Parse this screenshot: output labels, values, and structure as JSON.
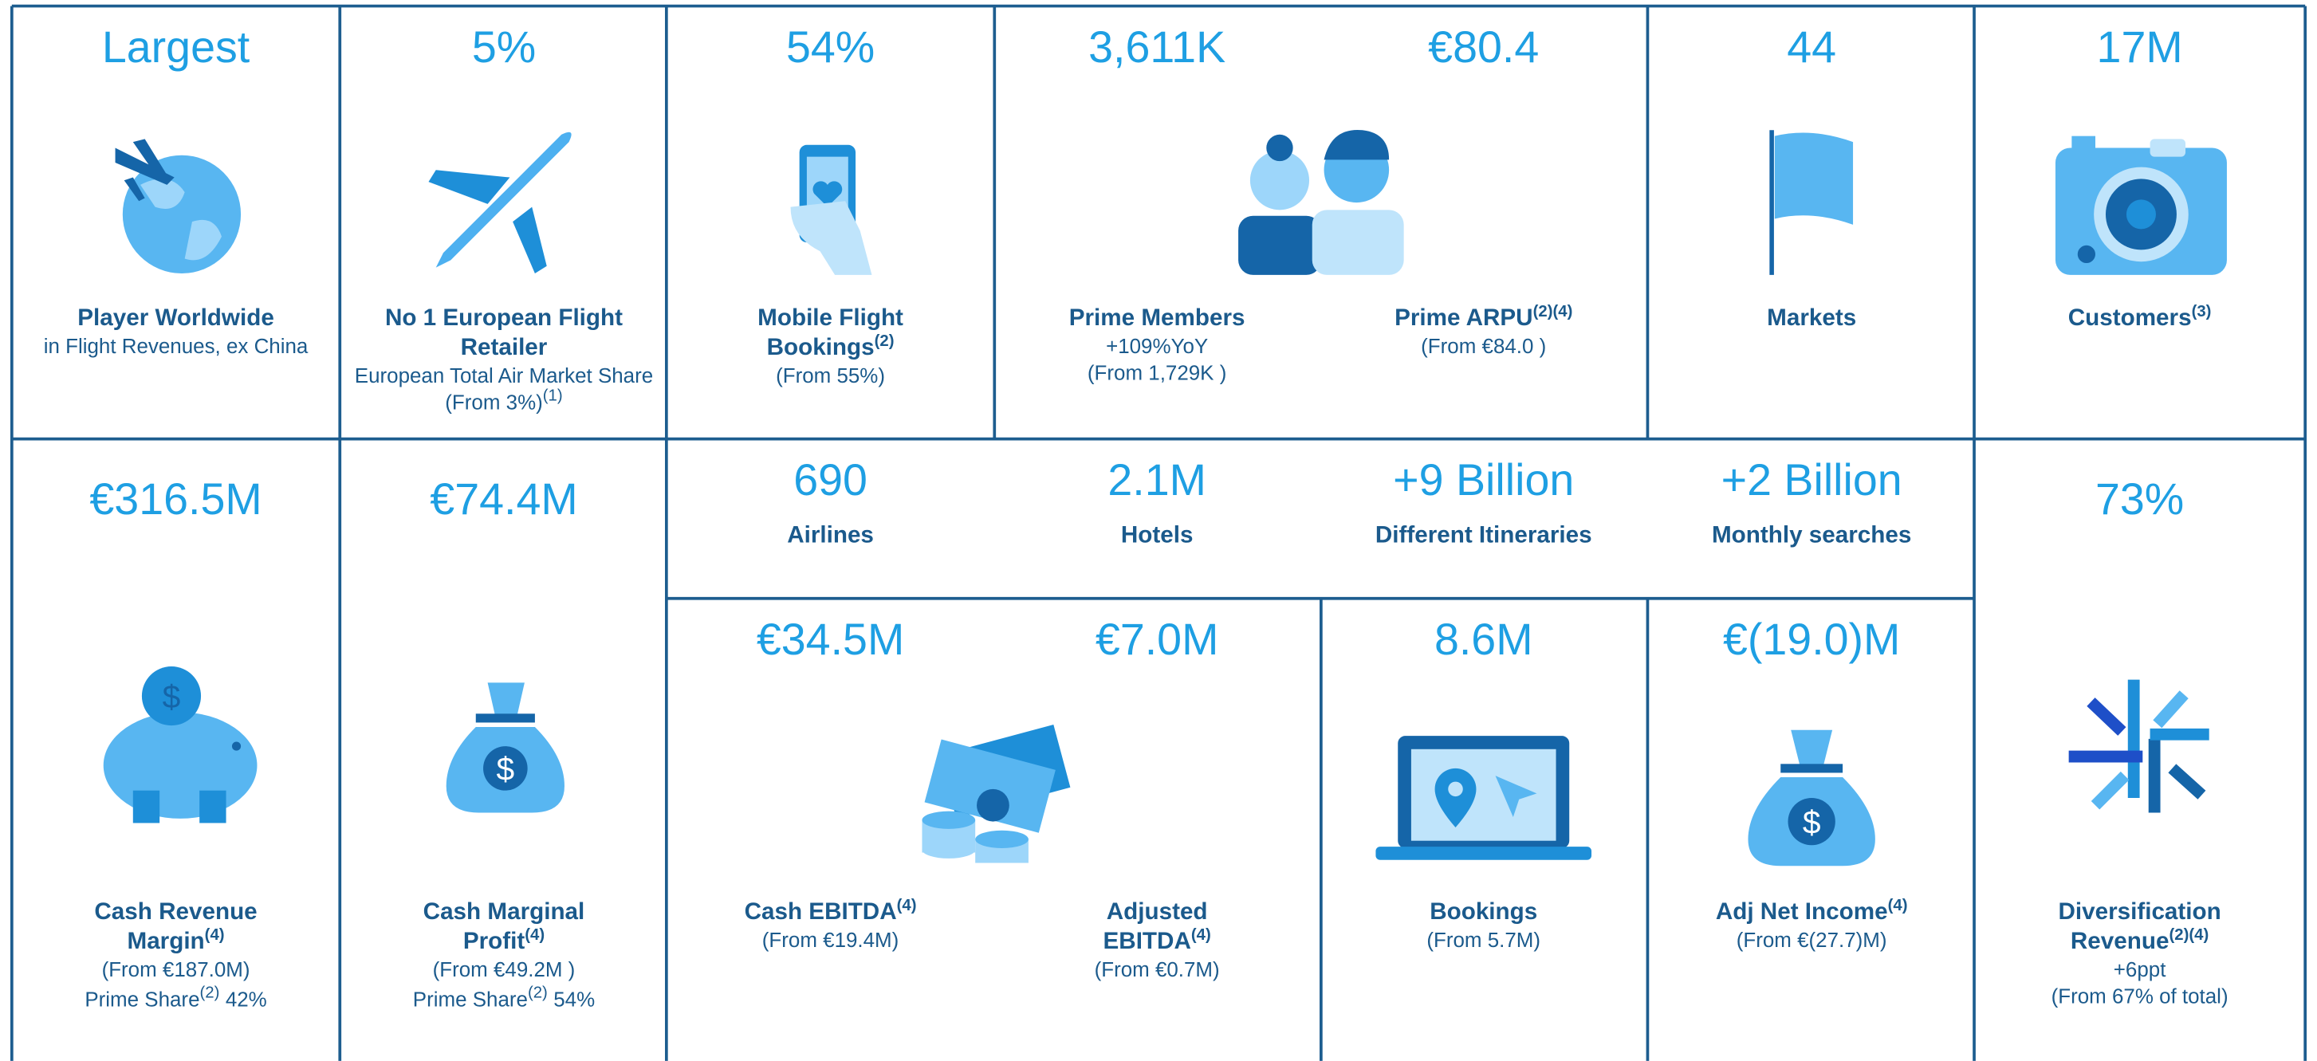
{
  "row1": [
    {
      "value": "Largest",
      "label": [
        "Player Worldwide"
      ],
      "notes": [
        "in Flight Revenues, ex China"
      ]
    },
    {
      "value": "5%",
      "label": [
        "No 1 European Flight",
        "Retailer"
      ],
      "notes": [
        "European Total Air Market Share",
        "(From 3%)"
      ],
      "notes_sup": "(1)"
    },
    {
      "value": "54%",
      "label": [
        "Mobile Flight",
        "Bookings"
      ],
      "label_sup": "(2)",
      "notes": [
        "(From 55%)"
      ]
    },
    {
      "value": "3,611K",
      "label": [
        "Prime Members"
      ],
      "notes": [
        "+109%YoY",
        "(From 1,729K )"
      ]
    },
    {
      "value": "€80.4",
      "label": [
        "Prime ARPU"
      ],
      "label_sup": "(2)(4)",
      "notes": [
        "(From €84.0 )"
      ]
    },
    {
      "value": "44",
      "label": [
        "Markets"
      ]
    },
    {
      "value": "17M",
      "label": [
        "Customers"
      ],
      "label_sup": "(3)"
    }
  ],
  "reach": [
    {
      "value": "690",
      "label": "Airlines"
    },
    {
      "value": "2.1M",
      "label": "Hotels"
    },
    {
      "value": "+9 Billion",
      "label": "Different Itineraries"
    },
    {
      "value": "+2 Billion",
      "label": "Monthly searches"
    }
  ],
  "row2": [
    {
      "value": "€316.5M",
      "label": [
        "Cash Revenue",
        "Margin"
      ],
      "label_sup": "(4)",
      "notes": [
        "(From €187.0M)"
      ],
      "share": {
        "text": "Prime Share",
        "sup": "(2)",
        "value": "42%"
      }
    },
    {
      "value": "€74.4M",
      "label": [
        "Cash Marginal",
        "Profit"
      ],
      "label_sup": "(4)",
      "notes": [
        "(From €49.2M )"
      ],
      "share": {
        "text": "Prime Share",
        "sup": "(2)",
        "value": "54%"
      }
    },
    {
      "value": "€34.5M",
      "label": [
        "Cash EBITDA"
      ],
      "label_sup": "(4)",
      "notes": [
        "(From €19.4M)"
      ]
    },
    {
      "value": "€7.0M",
      "label": [
        "Adjusted",
        "EBITDA"
      ],
      "label_sup": "(4)",
      "notes": [
        "(From €0.7M)"
      ]
    },
    {
      "value": "8.6M",
      "label": [
        "Bookings"
      ],
      "notes": [
        "(From 5.7M)"
      ]
    },
    {
      "value": "€(19.0)M",
      "label": [
        "Adj Net Income"
      ],
      "label_sup": "(4)",
      "notes": [
        "(From €(27.7)M)"
      ]
    },
    {
      "value": "73%",
      "label": [
        "Diversification",
        "Revenue"
      ],
      "label_sup": "(2)(4)",
      "notes": [
        "+6ppt",
        "(From 67% of total)"
      ]
    }
  ]
}
